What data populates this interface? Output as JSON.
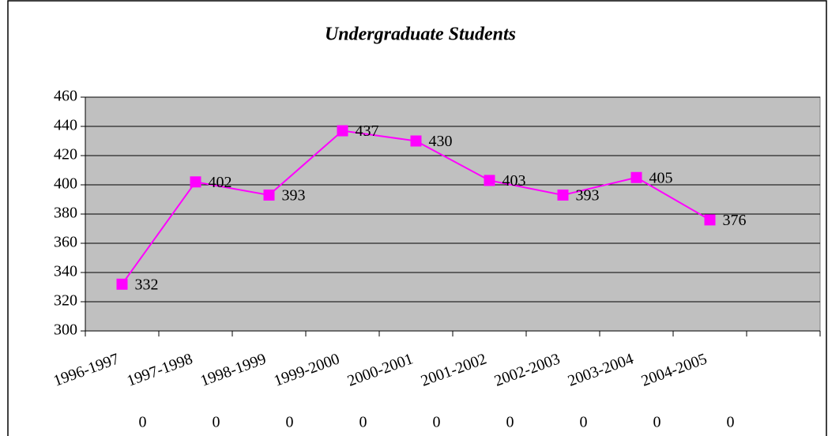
{
  "chart_data": {
    "type": "line",
    "title": "Undergraduate Students",
    "categories": [
      "1996-1997",
      "1997-1998",
      "1998-1999",
      "1999-2000",
      "2000-2001",
      "2001-2002",
      "2002-2003",
      "2003-2004",
      "2004-2005",
      null
    ],
    "series": [
      {
        "name": "Undergraduate Students",
        "color": "#ff00ff",
        "values": [
          332,
          402,
          393,
          437,
          430,
          403,
          393,
          405,
          376,
          null
        ]
      }
    ],
    "row_labels": [
      "0",
      "0",
      "0",
      "0",
      "0",
      "0",
      "0",
      "0",
      "0"
    ],
    "ylim": [
      300,
      460
    ],
    "yticks": [
      300,
      320,
      340,
      360,
      380,
      400,
      420,
      440,
      460
    ],
    "grid": true
  }
}
